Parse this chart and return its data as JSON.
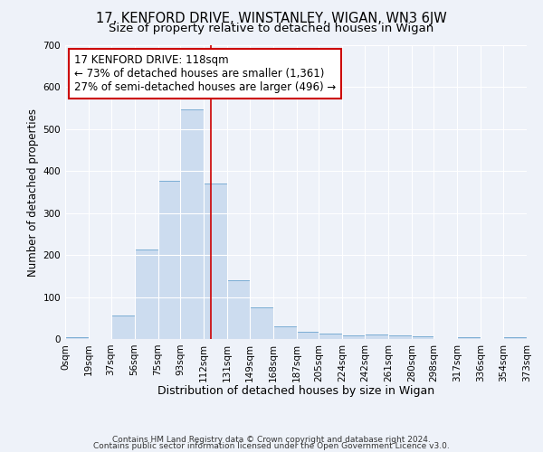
{
  "title1": "17, KENFORD DRIVE, WINSTANLEY, WIGAN, WN3 6JW",
  "title2": "Size of property relative to detached houses in Wigan",
  "xlabel": "Distribution of detached houses by size in Wigan",
  "ylabel": "Number of detached properties",
  "bin_edges": [
    0,
    19,
    37,
    56,
    75,
    93,
    112,
    131,
    149,
    168,
    187,
    205,
    224,
    242,
    261,
    280,
    298,
    317,
    336,
    354,
    373
  ],
  "bar_heights": [
    5,
    0,
    55,
    213,
    378,
    548,
    370,
    140,
    75,
    30,
    18,
    14,
    8,
    10,
    8,
    6,
    0,
    5,
    0,
    5
  ],
  "bar_color": "#ccdcef",
  "bar_edge_color": "#7aadd4",
  "bg_color": "#eef2f9",
  "grid_color": "#ffffff",
  "vline_x": 118,
  "vline_color": "#cc0000",
  "annotation_text_line1": "17 KENFORD DRIVE: 118sqm",
  "annotation_text_line2": "← 73% of detached houses are smaller (1,361)",
  "annotation_text_line3": "27% of semi-detached houses are larger (496) →",
  "annotation_box_color": "#cc0000",
  "ylim": [
    0,
    700
  ],
  "yticks": [
    0,
    100,
    200,
    300,
    400,
    500,
    600,
    700
  ],
  "tick_labels": [
    "0sqm",
    "19sqm",
    "37sqm",
    "56sqm",
    "75sqm",
    "93sqm",
    "112sqm",
    "131sqm",
    "149sqm",
    "168sqm",
    "187sqm",
    "205sqm",
    "224sqm",
    "242sqm",
    "261sqm",
    "280sqm",
    "298sqm",
    "317sqm",
    "336sqm",
    "354sqm",
    "373sqm"
  ],
  "footer1": "Contains HM Land Registry data © Crown copyright and database right 2024.",
  "footer2": "Contains public sector information licensed under the Open Government Licence v3.0.",
  "title1_fontsize": 10.5,
  "title2_fontsize": 9.5,
  "xlabel_fontsize": 9,
  "ylabel_fontsize": 8.5,
  "tick_fontsize": 7.5,
  "footer_fontsize": 6.5,
  "ann_fontsize": 8.5
}
